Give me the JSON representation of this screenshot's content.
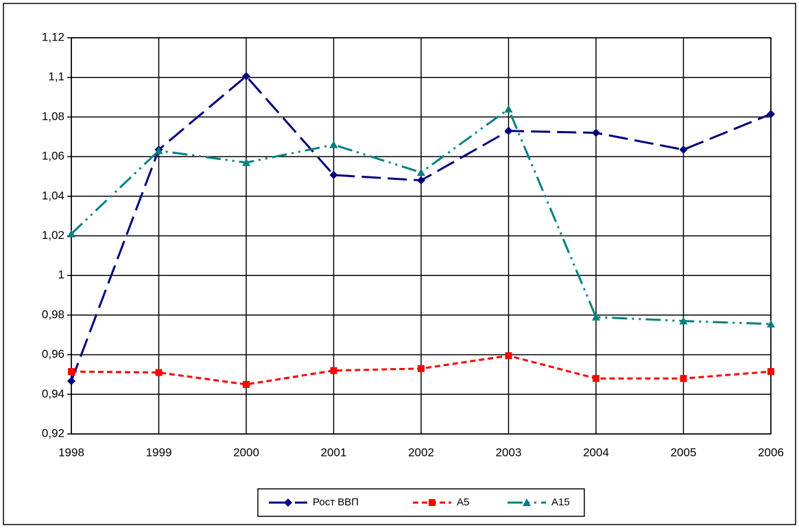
{
  "chart_data": {
    "type": "line",
    "categories": [
      "1998",
      "1999",
      "2000",
      "2001",
      "2002",
      "2003",
      "2004",
      "2005",
      "2006"
    ],
    "series": [
      {
        "name": "Рост ВВП",
        "color": "#000080",
        "marker": "diamond",
        "values": [
          0.9467,
          1.0635,
          1.1006,
          1.0507,
          1.048,
          1.073,
          1.072,
          1.0635,
          1.0815
        ]
      },
      {
        "name": "А5",
        "color": "#ff0000",
        "marker": "square",
        "values": [
          0.9515,
          0.951,
          0.945,
          0.952,
          0.953,
          0.9595,
          0.948,
          0.948,
          0.9515
        ]
      },
      {
        "name": "А15",
        "color": "#008080",
        "marker": "triangle",
        "values": [
          1.021,
          1.063,
          1.057,
          1.066,
          1.052,
          1.084,
          0.979,
          0.977,
          0.9755
        ]
      }
    ],
    "ylim": [
      0.92,
      1.12
    ],
    "yticks": [
      {
        "value": 0.92,
        "label": "0,92"
      },
      {
        "value": 0.94,
        "label": "0,94"
      },
      {
        "value": 0.96,
        "label": "0,96"
      },
      {
        "value": 0.98,
        "label": "0,98"
      },
      1,
      {
        "value": 1.02,
        "label": "1,02"
      },
      {
        "value": 1.04,
        "label": "1,04"
      },
      {
        "value": 1.06,
        "label": "1,06"
      },
      {
        "value": 1.08,
        "label": "1,08"
      },
      {
        "value": 1.1,
        "label": "1,1"
      },
      {
        "value": 1.12,
        "label": "1,12"
      }
    ],
    "grid": true,
    "legend": "bottom"
  }
}
